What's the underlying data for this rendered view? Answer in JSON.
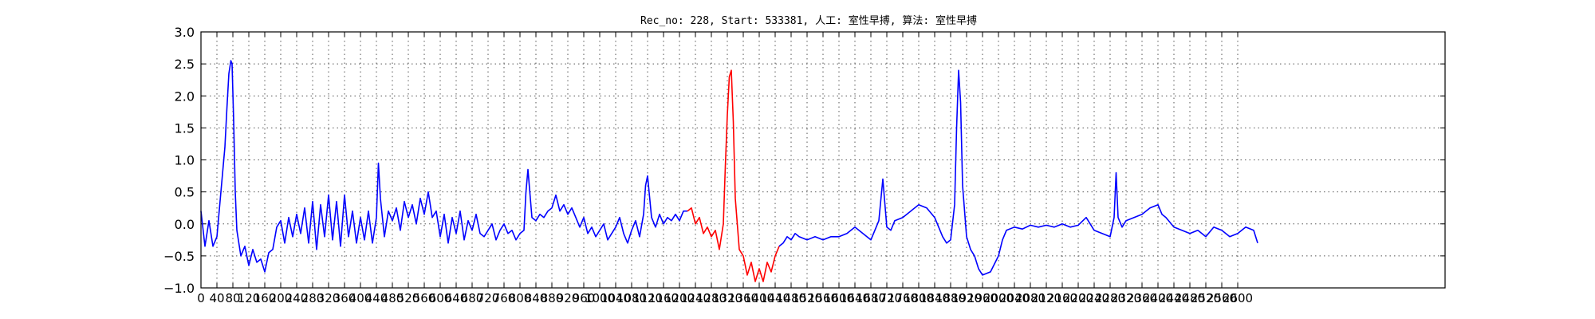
{
  "chart_data": {
    "type": "line",
    "title": "Rec_no: 228, Start: 533381, 人工: 室性早搏, 算法: 室性早搏",
    "xlabel": "",
    "ylabel": "",
    "xlim": [
      0,
      3120
    ],
    "ylim": [
      -1.0,
      3.0
    ],
    "grid": true,
    "yticks": [
      -1.0,
      -0.5,
      0.0,
      0.5,
      1.0,
      1.5,
      2.0,
      2.5,
      3.0
    ],
    "ytick_labels": [
      "−1.0",
      "−0.5",
      "0.0",
      "0.5",
      "1.0",
      "1.5",
      "2.0",
      "2.5",
      "3.0"
    ],
    "xticks": [
      0,
      40,
      80,
      120,
      160,
      200,
      240,
      280,
      320,
      360,
      400,
      440,
      480,
      520,
      560,
      600,
      640,
      680,
      720,
      760,
      800,
      840,
      880,
      920,
      960,
      1000,
      1040,
      1080,
      1120,
      1160,
      1200,
      1240,
      1280,
      1320,
      1360,
      1400,
      1440,
      1480,
      1520,
      1560,
      1600,
      1640,
      1680,
      1720,
      1760,
      1800,
      1840,
      1880,
      1920,
      1960,
      2000,
      2040,
      2080,
      2120,
      2160,
      2200,
      2240,
      2280,
      2320,
      2360,
      2400,
      2440,
      2480,
      2520,
      2560,
      2600
    ],
    "series": [
      {
        "color": "#0000ff",
        "x": [
          0,
          10,
          20,
          30,
          40,
          50,
          60,
          65,
          70,
          75,
          78,
          82,
          86,
          90,
          95,
          100,
          110,
          120,
          130,
          140,
          150,
          160,
          170,
          180,
          190,
          200,
          210,
          220,
          230,
          240,
          250,
          260,
          270,
          280,
          290,
          300,
          310,
          320,
          330,
          340,
          350,
          360,
          370,
          380,
          390,
          400,
          410,
          420,
          430,
          440,
          445,
          450,
          460,
          470,
          480,
          490,
          500,
          510,
          520,
          530,
          540,
          550,
          560,
          570,
          580,
          590,
          600,
          610,
          620,
          630,
          640,
          650,
          660,
          670,
          680,
          690,
          700,
          710,
          720,
          730,
          740,
          750,
          760,
          770,
          780,
          790,
          800,
          810,
          815,
          820,
          830,
          840,
          850,
          860,
          870,
          880,
          890,
          900,
          910,
          920,
          930,
          940,
          950,
          960,
          970,
          980,
          990,
          1000,
          1010,
          1020,
          1030,
          1040,
          1050,
          1060,
          1070,
          1080,
          1090,
          1100,
          1110,
          1115,
          1120,
          1130,
          1140,
          1150,
          1160,
          1170,
          1180,
          1190,
          1200,
          1210,
          1220
        ],
        "y": [
          0.2,
          -0.35,
          0.05,
          -0.35,
          -0.2,
          0.5,
          1.2,
          1.8,
          2.35,
          2.55,
          2.5,
          1.6,
          0.5,
          -0.1,
          -0.3,
          -0.5,
          -0.35,
          -0.65,
          -0.4,
          -0.6,
          -0.55,
          -0.75,
          -0.45,
          -0.4,
          -0.05,
          0.05,
          -0.3,
          0.1,
          -0.2,
          0.15,
          -0.15,
          0.25,
          -0.3,
          0.35,
          -0.4,
          0.3,
          -0.2,
          0.45,
          -0.25,
          0.35,
          -0.35,
          0.45,
          -0.2,
          0.2,
          -0.3,
          0.1,
          -0.25,
          0.2,
          -0.3,
          0.1,
          0.95,
          0.4,
          -0.2,
          0.2,
          0.05,
          0.25,
          -0.1,
          0.35,
          0.1,
          0.3,
          0.0,
          0.4,
          0.15,
          0.5,
          0.1,
          0.2,
          -0.2,
          0.15,
          -0.3,
          0.1,
          -0.15,
          0.2,
          -0.25,
          0.05,
          -0.1,
          0.15,
          -0.15,
          -0.2,
          -0.1,
          0.0,
          -0.25,
          -0.1,
          0.0,
          -0.15,
          -0.1,
          -0.25,
          -0.15,
          -0.1,
          0.5,
          0.85,
          0.1,
          0.05,
          0.15,
          0.1,
          0.2,
          0.25,
          0.45,
          0.2,
          0.3,
          0.15,
          0.25,
          0.1,
          -0.05,
          0.1,
          -0.15,
          -0.05,
          -0.2,
          -0.1,
          0.0,
          -0.25,
          -0.15,
          -0.05,
          0.1,
          -0.15,
          -0.3,
          -0.1,
          0.05,
          -0.2,
          0.15,
          0.6,
          0.75,
          0.1,
          -0.05,
          0.15,
          0.0,
          0.1,
          0.05,
          0.15,
          0.05,
          0.2,
          0.2
        ]
      },
      {
        "color": "#ff0000",
        "x": [
          1220,
          1230,
          1240,
          1250,
          1260,
          1270,
          1280,
          1290,
          1300,
          1310,
          1315,
          1320,
          1325,
          1330,
          1335,
          1340,
          1350,
          1360,
          1370,
          1380,
          1390,
          1400,
          1410,
          1420,
          1430,
          1440,
          1450
        ],
        "y": [
          0.2,
          0.25,
          0.0,
          0.1,
          -0.15,
          -0.05,
          -0.2,
          -0.1,
          -0.4,
          0.0,
          0.9,
          1.7,
          2.3,
          2.4,
          1.6,
          0.4,
          -0.4,
          -0.5,
          -0.8,
          -0.6,
          -0.9,
          -0.7,
          -0.9,
          -0.6,
          -0.75,
          -0.5,
          -0.35
        ]
      },
      {
        "color": "#0000ff",
        "x": [
          1450,
          1460,
          1470,
          1480,
          1490,
          1500,
          1520,
          1540,
          1560,
          1580,
          1600,
          1620,
          1640,
          1660,
          1680,
          1690,
          1700,
          1710,
          1720,
          1730,
          1740,
          1760,
          1780,
          1800,
          1820,
          1840,
          1860,
          1870,
          1880,
          1890,
          1895,
          1900,
          1905,
          1910,
          1920,
          1930,
          1940,
          1950,
          1960,
          1980,
          2000,
          2010,
          2020,
          2040,
          2060,
          2080,
          2100,
          2120,
          2140,
          2160,
          2180,
          2200,
          2220,
          2240,
          2260,
          2280,
          2290,
          2295,
          2300,
          2310,
          2320,
          2340,
          2360,
          2380,
          2400,
          2410,
          2420,
          2440,
          2460,
          2480,
          2500,
          2520,
          2540,
          2560,
          2580,
          2600,
          2620,
          2640,
          2650
        ],
        "y": [
          -0.35,
          -0.3,
          -0.2,
          -0.25,
          -0.15,
          -0.2,
          -0.25,
          -0.2,
          -0.25,
          -0.2,
          -0.2,
          -0.15,
          -0.05,
          -0.15,
          -0.25,
          -0.1,
          0.05,
          0.7,
          -0.05,
          -0.1,
          0.05,
          0.1,
          0.2,
          0.3,
          0.25,
          0.1,
          -0.2,
          -0.3,
          -0.25,
          0.3,
          1.5,
          2.4,
          1.9,
          0.6,
          -0.2,
          -0.4,
          -0.5,
          -0.7,
          -0.8,
          -0.75,
          -0.5,
          -0.25,
          -0.1,
          -0.05,
          -0.08,
          -0.02,
          -0.05,
          -0.02,
          -0.05,
          0.0,
          -0.05,
          -0.02,
          0.1,
          -0.1,
          -0.15,
          -0.2,
          0.1,
          0.8,
          0.1,
          -0.05,
          0.05,
          0.1,
          0.15,
          0.25,
          0.3,
          0.15,
          0.1,
          -0.05,
          -0.1,
          -0.15,
          -0.1,
          -0.2,
          -0.05,
          -0.1,
          -0.2,
          -0.15,
          -0.05,
          -0.1,
          -0.3
        ]
      }
    ]
  }
}
